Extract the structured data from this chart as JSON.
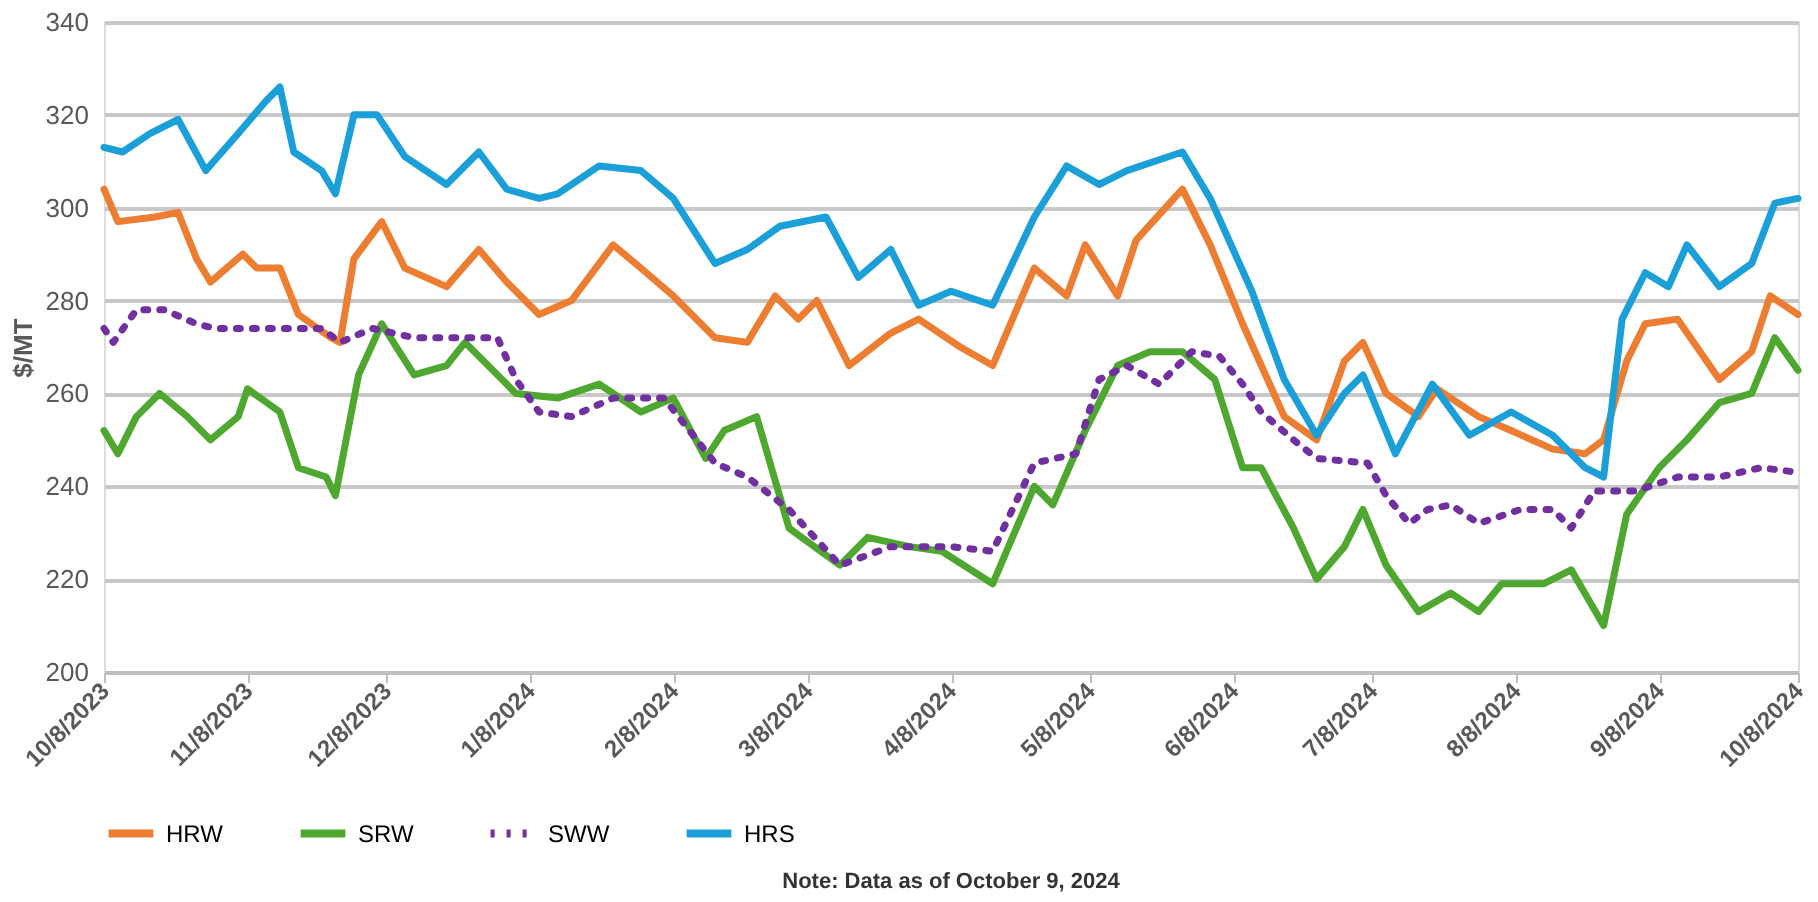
{
  "chart_data": {
    "type": "line",
    "ylabel": "$/MT",
    "xlim": [
      "2023-10-08",
      "2024-10-08"
    ],
    "xticks": [
      {
        "value": "2023-10-08",
        "label": "10/8/2023"
      },
      {
        "value": "2023-11-08",
        "label": "11/8/2023"
      },
      {
        "value": "2023-12-08",
        "label": "12/8/2023"
      },
      {
        "value": "2024-01-08",
        "label": "1/8/2024"
      },
      {
        "value": "2024-02-08",
        "label": "2/8/2024"
      },
      {
        "value": "2024-03-08",
        "label": "3/8/2024"
      },
      {
        "value": "2024-04-08",
        "label": "4/8/2024"
      },
      {
        "value": "2024-05-08",
        "label": "5/8/2024"
      },
      {
        "value": "2024-06-08",
        "label": "6/8/2024"
      },
      {
        "value": "2024-07-08",
        "label": "7/8/2024"
      },
      {
        "value": "2024-08-08",
        "label": "8/8/2024"
      },
      {
        "value": "2024-09-08",
        "label": "9/8/2024"
      },
      {
        "value": "2024-10-08",
        "label": "10/8/2024"
      }
    ],
    "ylim": [
      200,
      340
    ],
    "yticks": [
      200,
      220,
      240,
      260,
      280,
      300,
      320,
      340
    ],
    "grid": "y",
    "legend": "bottom",
    "marker": "none",
    "annotations": [
      "Note: Data as of October 9, 2024"
    ],
    "series": [
      {
        "name": "HRW",
        "color": "#ed7d31",
        "line_style": "solid",
        "x": [
          "2023-10-08",
          "2023-10-11",
          "2023-10-19",
          "2023-10-24",
          "2023-10-28",
          "2023-10-31",
          "2023-11-07",
          "2023-11-10",
          "2023-11-15",
          "2023-11-19",
          "2023-11-26",
          "2023-11-28",
          "2023-12-01",
          "2023-12-07",
          "2023-12-12",
          "2023-12-21",
          "2023-12-28",
          "2024-01-03",
          "2024-01-10",
          "2024-01-17",
          "2024-01-26",
          "2024-02-01",
          "2024-02-08",
          "2024-02-17",
          "2024-02-24",
          "2024-03-01",
          "2024-03-06",
          "2024-03-10",
          "2024-03-17",
          "2024-03-26",
          "2024-04-01",
          "2024-04-10",
          "2024-04-17",
          "2024-04-26",
          "2024-05-03",
          "2024-05-07",
          "2024-05-14",
          "2024-05-18",
          "2024-05-28",
          "2024-06-03",
          "2024-06-10",
          "2024-06-19",
          "2024-06-26",
          "2024-07-02",
          "2024-07-06",
          "2024-07-11",
          "2024-07-18",
          "2024-07-22",
          "2024-07-31",
          "2024-08-07",
          "2024-08-16",
          "2024-08-23",
          "2024-08-27",
          "2024-09-01",
          "2024-09-05",
          "2024-09-12",
          "2024-09-21",
          "2024-09-28",
          "2024-10-02",
          "2024-10-08"
        ],
        "values": [
          304,
          297,
          298,
          299,
          289,
          284,
          290,
          287,
          287,
          277,
          272,
          271,
          289,
          297,
          287,
          283,
          291,
          284,
          277,
          280,
          292,
          287,
          281,
          272,
          271,
          281,
          276,
          280,
          266,
          273,
          276,
          270,
          266,
          287,
          281,
          292,
          281,
          293,
          304,
          292,
          275,
          255,
          250,
          267,
          271,
          260,
          255,
          261,
          255,
          252,
          248,
          247,
          250,
          267,
          275,
          276,
          263,
          269,
          281,
          277
        ]
      },
      {
        "name": "SRW",
        "color": "#4ea72e",
        "line_style": "solid",
        "x": [
          "2023-10-08",
          "2023-10-11",
          "2023-10-15",
          "2023-10-20",
          "2023-10-26",
          "2023-10-31",
          "2023-11-06",
          "2023-11-08",
          "2023-11-15",
          "2023-11-19",
          "2023-11-25",
          "2023-11-27",
          "2023-12-02",
          "2023-12-07",
          "2023-12-14",
          "2023-12-21",
          "2023-12-25",
          "2024-01-01",
          "2024-01-05",
          "2024-01-14",
          "2024-01-23",
          "2024-02-01",
          "2024-02-08",
          "2024-02-15",
          "2024-02-19",
          "2024-02-26",
          "2024-03-04",
          "2024-03-15",
          "2024-03-21",
          "2024-03-30",
          "2024-04-06",
          "2024-04-17",
          "2024-04-26",
          "2024-04-30",
          "2024-05-07",
          "2024-05-14",
          "2024-05-21",
          "2024-05-28",
          "2024-06-04",
          "2024-06-10",
          "2024-06-14",
          "2024-06-21",
          "2024-06-26",
          "2024-07-02",
          "2024-07-06",
          "2024-07-11",
          "2024-07-18",
          "2024-07-25",
          "2024-07-31",
          "2024-08-05",
          "2024-08-14",
          "2024-08-20",
          "2024-08-27",
          "2024-09-01",
          "2024-09-08",
          "2024-09-14",
          "2024-09-21",
          "2024-09-28",
          "2024-10-03",
          "2024-10-08"
        ],
        "values": [
          252,
          247,
          255,
          260,
          255,
          250,
          255,
          261,
          256,
          244,
          242,
          238,
          264,
          275,
          264,
          266,
          271,
          264,
          260,
          259,
          262,
          256,
          259,
          246,
          252,
          255,
          231,
          223,
          229,
          227,
          226,
          219,
          240,
          236,
          252,
          266,
          269,
          269,
          263,
          244,
          244,
          231,
          220,
          227,
          235,
          223,
          213,
          217,
          213,
          219,
          219,
          222,
          210,
          234,
          244,
          250,
          258,
          260,
          272,
          265
        ]
      },
      {
        "name": "SWW",
        "color": "#7030a0",
        "line_style": "dotted",
        "x": [
          "2023-10-08",
          "2023-10-10",
          "2023-10-15",
          "2023-10-21",
          "2023-10-28",
          "2023-11-01",
          "2023-11-12",
          "2023-11-24",
          "2023-11-28",
          "2023-12-05",
          "2023-12-14",
          "2023-12-23",
          "2024-01-01",
          "2024-01-05",
          "2024-01-10",
          "2024-01-17",
          "2024-01-26",
          "2024-02-06",
          "2024-02-17",
          "2024-02-24",
          "2024-03-04",
          "2024-03-15",
          "2024-03-26",
          "2024-04-08",
          "2024-04-17",
          "2024-04-26",
          "2024-05-05",
          "2024-05-10",
          "2024-05-16",
          "2024-05-23",
          "2024-05-30",
          "2024-06-05",
          "2024-06-10",
          "2024-06-14",
          "2024-06-21",
          "2024-06-26",
          "2024-07-07",
          "2024-07-11",
          "2024-07-16",
          "2024-07-20",
          "2024-07-25",
          "2024-07-31",
          "2024-08-09",
          "2024-08-16",
          "2024-08-20",
          "2024-08-25",
          "2024-09-03",
          "2024-09-12",
          "2024-09-21",
          "2024-09-30",
          "2024-10-08"
        ],
        "values": [
          274,
          271,
          278,
          278,
          275,
          274,
          274,
          274,
          271,
          274,
          272,
          272,
          272,
          263,
          256,
          255,
          259,
          259,
          245,
          242,
          235,
          223,
          227,
          227,
          226,
          245,
          247,
          263,
          266,
          262,
          269,
          268,
          262,
          256,
          250,
          246,
          245,
          238,
          232,
          235,
          236,
          232,
          235,
          235,
          231,
          239,
          239,
          242,
          242,
          244,
          243
        ]
      },
      {
        "name": "HRS",
        "color": "#1b9fd9",
        "line_style": "solid",
        "x": [
          "2023-10-08",
          "2023-10-12",
          "2023-10-18",
          "2023-10-24",
          "2023-10-30",
          "2023-11-06",
          "2023-11-12",
          "2023-11-15",
          "2023-11-18",
          "2023-11-24",
          "2023-11-27",
          "2023-12-01",
          "2023-12-06",
          "2023-12-12",
          "2023-12-21",
          "2023-12-28",
          "2024-01-03",
          "2024-01-10",
          "2024-01-14",
          "2024-01-23",
          "2024-02-01",
          "2024-02-08",
          "2024-02-17",
          "2024-02-24",
          "2024-03-02",
          "2024-03-12",
          "2024-03-19",
          "2024-03-26",
          "2024-04-01",
          "2024-04-08",
          "2024-04-17",
          "2024-04-26",
          "2024-05-03",
          "2024-05-10",
          "2024-05-16",
          "2024-05-28",
          "2024-06-03",
          "2024-06-12",
          "2024-06-19",
          "2024-06-26",
          "2024-07-02",
          "2024-07-06",
          "2024-07-13",
          "2024-07-21",
          "2024-07-29",
          "2024-08-07",
          "2024-08-16",
          "2024-08-23",
          "2024-08-27",
          "2024-08-31",
          "2024-09-05",
          "2024-09-10",
          "2024-09-14",
          "2024-09-21",
          "2024-09-28",
          "2024-10-03",
          "2024-10-08"
        ],
        "values": [
          313,
          312,
          316,
          319,
          308,
          316,
          323,
          326,
          312,
          308,
          303,
          320,
          320,
          311,
          305,
          312,
          304,
          302,
          303,
          309,
          308,
          302,
          288,
          291,
          296,
          298,
          285,
          291,
          279,
          282,
          279,
          298,
          309,
          305,
          308,
          312,
          302,
          282,
          263,
          251,
          260,
          264,
          247,
          262,
          251,
          256,
          251,
          244,
          242,
          276,
          286,
          283,
          292,
          283,
          288,
          301,
          302
        ]
      }
    ]
  }
}
